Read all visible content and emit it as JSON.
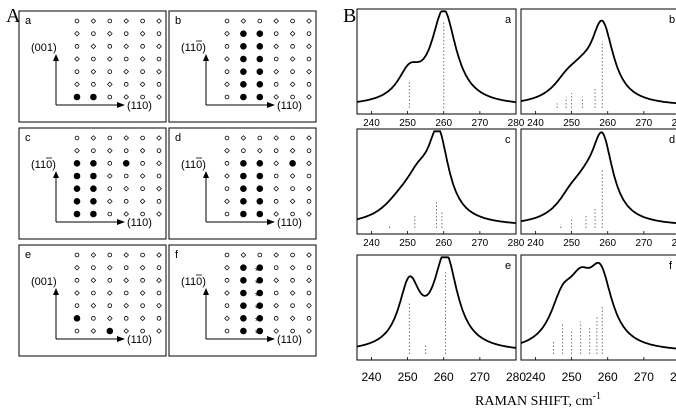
{
  "figure": {
    "left_letter": "A",
    "right_letter": "B"
  },
  "lattice_panels": [
    {
      "label": "a",
      "x_axis_label": "(110)",
      "y_axis_label": "(001)",
      "y_axis_overbar": false
    },
    {
      "label": "b",
      "x_axis_label": "(110)",
      "y_axis_label": "(110)",
      "y_axis_overbar": true
    },
    {
      "label": "c",
      "x_axis_label": "(110)",
      "y_axis_label": "(110)",
      "y_axis_overbar": true
    },
    {
      "label": "d",
      "x_axis_label": "(110)",
      "y_axis_label": "(110)",
      "y_axis_overbar": true
    },
    {
      "label": "e",
      "x_axis_label": "(110)",
      "y_axis_label": "(001)",
      "y_axis_overbar": false
    },
    {
      "label": "f",
      "x_axis_label": "(110)",
      "y_axis_label": "(110)",
      "y_axis_overbar": true
    }
  ],
  "chart_data": {
    "type": "line",
    "xlabel": "RAMAN SHIFT, cm",
    "xlabel_superscript": "-1",
    "x_ticks": [
      "240",
      "250",
      "260",
      "270",
      "280"
    ],
    "xlim": [
      236,
      280
    ],
    "panels": [
      {
        "label": "a",
        "peaks": [
          {
            "center": 250.5,
            "amplitude": 0.3,
            "width": 4.0
          },
          {
            "center": 260,
            "amplitude": 1.0,
            "width": 4.2
          }
        ],
        "sticks": [
          {
            "x": 250.5,
            "value": 0.28
          },
          {
            "x": 260,
            "value": 0.92
          }
        ]
      },
      {
        "label": "b",
        "peaks": [
          {
            "center": 249,
            "amplitude": 0.22,
            "width": 5
          },
          {
            "center": 253,
            "amplitude": 0.16,
            "width": 4
          },
          {
            "center": 258.5,
            "amplitude": 0.82,
            "width": 3.8
          }
        ],
        "sticks": [
          {
            "x": 246,
            "value": 0.05
          },
          {
            "x": 248.5,
            "value": 0.12
          },
          {
            "x": 250,
            "value": 0.16
          },
          {
            "x": 253,
            "value": 0.12
          },
          {
            "x": 256.5,
            "value": 0.22
          },
          {
            "x": 258.5,
            "value": 0.72
          }
        ]
      },
      {
        "label": "c",
        "peaks": [
          {
            "center": 248,
            "amplitude": 0.18,
            "width": 6
          },
          {
            "center": 253,
            "amplitude": 0.34,
            "width": 4.5
          },
          {
            "center": 258.5,
            "amplitude": 0.88,
            "width": 3.5
          }
        ],
        "sticks": [
          {
            "x": 245,
            "value": 0.04
          },
          {
            "x": 252,
            "value": 0.14
          },
          {
            "x": 258,
            "value": 0.28
          },
          {
            "x": 259.5,
            "value": 0.18
          }
        ]
      },
      {
        "label": "d",
        "peaks": [
          {
            "center": 250,
            "amplitude": 0.24,
            "width": 5
          },
          {
            "center": 254,
            "amplitude": 0.2,
            "width": 4
          },
          {
            "center": 258.5,
            "amplitude": 0.86,
            "width": 3.6
          }
        ],
        "sticks": [
          {
            "x": 247,
            "value": 0.04
          },
          {
            "x": 250,
            "value": 0.1
          },
          {
            "x": 254,
            "value": 0.14
          },
          {
            "x": 256.5,
            "value": 0.22
          },
          {
            "x": 258.5,
            "value": 0.62
          }
        ]
      },
      {
        "label": "e",
        "peaks": [
          {
            "center": 250.5,
            "amplitude": 0.68,
            "width": 3.6
          },
          {
            "center": 260.5,
            "amplitude": 1.0,
            "width": 4.0
          }
        ],
        "sticks": [
          {
            "x": 250.5,
            "value": 0.55
          },
          {
            "x": 255,
            "value": 0.1
          },
          {
            "x": 260.5,
            "value": 0.88
          }
        ]
      },
      {
        "label": "f",
        "peaks": [
          {
            "center": 247.5,
            "amplitude": 0.45,
            "width": 4.2
          },
          {
            "center": 252.5,
            "amplitude": 0.48,
            "width": 4.0
          },
          {
            "center": 258,
            "amplitude": 0.72,
            "width": 4.0
          }
        ],
        "sticks": [
          {
            "x": 245,
            "value": 0.15
          },
          {
            "x": 247.5,
            "value": 0.32
          },
          {
            "x": 250,
            "value": 0.25
          },
          {
            "x": 252.5,
            "value": 0.35
          },
          {
            "x": 255,
            "value": 0.3
          },
          {
            "x": 257,
            "value": 0.4
          },
          {
            "x": 258.5,
            "value": 0.52
          }
        ]
      }
    ]
  }
}
